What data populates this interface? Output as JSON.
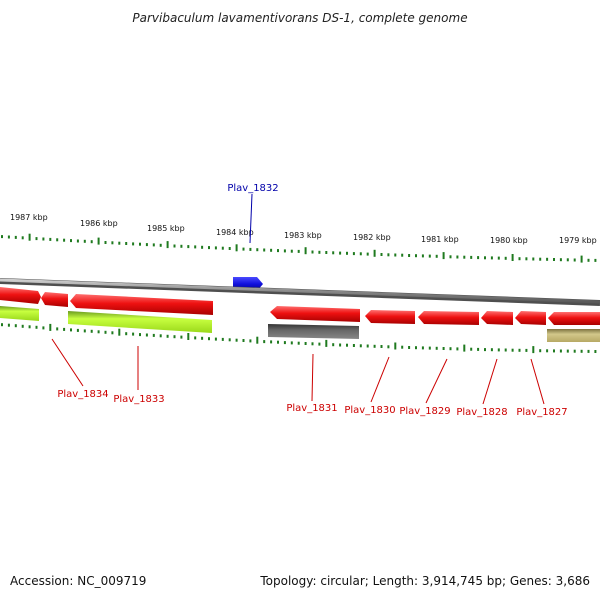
{
  "title": "Parvibaculum lavamentivorans DS-1, complete genome",
  "footer": {
    "accession": "Accession: NC_009719",
    "topology": "Topology: circular; Length: 3,914,745 bp; Genes: 3,686"
  },
  "colors": {
    "gene_red": "#ee1111",
    "gene_blue": "#1111dd",
    "gene_lime": "#aaee22",
    "gene_dark_gray": "#555555",
    "gene_khaki": "#bbaa66",
    "backbone": "#8a8a8a",
    "tick_green": "#1f7a1f",
    "label_red": "#cc0000",
    "label_blue": "#0000aa"
  },
  "ruler_labels": [
    "1987 kbp",
    "1986 kbp",
    "1985 kbp",
    "1984 kbp",
    "1983 kbp",
    "1982 kbp",
    "1981 kbp",
    "1980 kbp",
    "1979 kbp"
  ],
  "genes": [
    {
      "label": "Plav_1834",
      "color": "lime",
      "strand": "reverse-lower"
    },
    {
      "label": "Plav_1833",
      "color": "lime",
      "strand": "reverse-lower"
    },
    {
      "label": "Plav_1832",
      "color": "blue",
      "strand": "forward"
    },
    {
      "label": "Plav_1831",
      "color": "dark_gray",
      "strand": "reverse-lower"
    },
    {
      "label": "Plav_1830",
      "color": "red",
      "strand": "reverse"
    },
    {
      "label": "Plav_1829",
      "color": "red",
      "strand": "reverse"
    },
    {
      "label": "Plav_1828",
      "color": "red",
      "strand": "reverse"
    },
    {
      "label": "Plav_1827",
      "color": "red",
      "strand": "reverse"
    }
  ]
}
